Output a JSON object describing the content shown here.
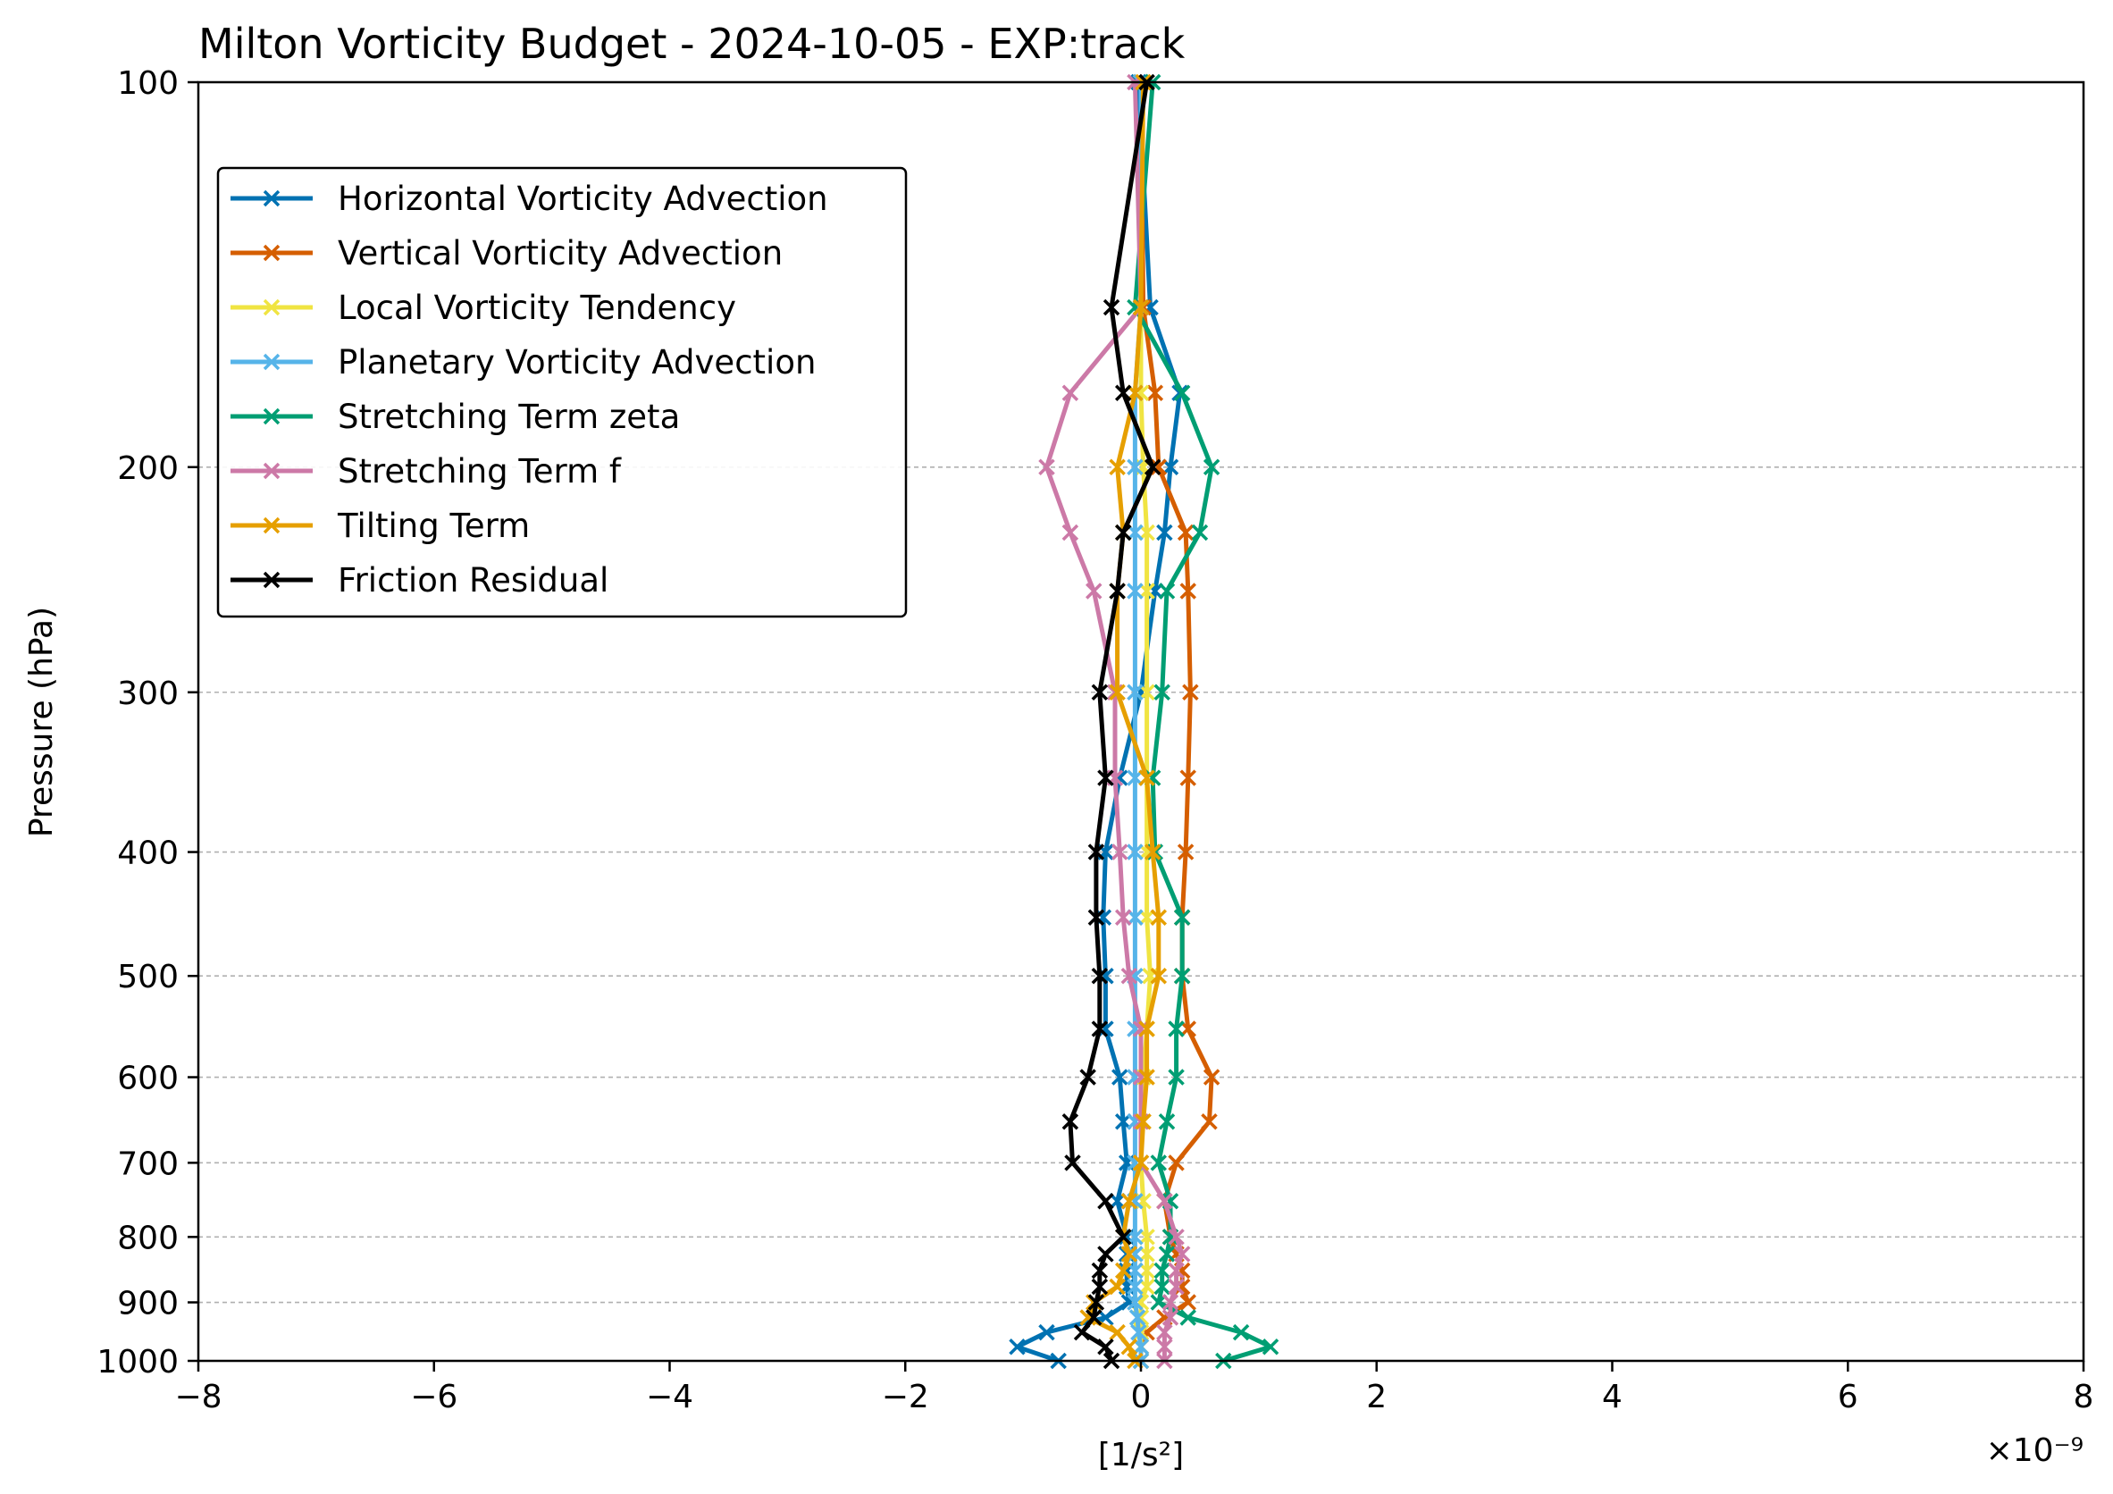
{
  "chart_data": {
    "type": "line",
    "title": "Milton Vorticity Budget - 2024-10-05 - EXP:track",
    "xlabel": "[1/s²]",
    "ylabel": "Pressure (hPa)",
    "x_offset_label": "×10⁻⁹",
    "x_scale_factor": 1e-09,
    "xlim": [
      -8e-09,
      8e-09
    ],
    "ylim": [
      1000,
      100
    ],
    "yscale": "log",
    "grid": "horizontal dashed",
    "legend_position": "upper-left",
    "xticks": [
      -8e-09,
      -6e-09,
      -4e-09,
      -2e-09,
      0,
      2e-09,
      4e-09,
      6e-09,
      8e-09
    ],
    "xtick_labels": [
      "−8",
      "−6",
      "−4",
      "−2",
      "0",
      "2",
      "4",
      "6",
      "8"
    ],
    "yticks": [
      100,
      200,
      300,
      400,
      500,
      600,
      700,
      800,
      900,
      1000
    ],
    "ytick_labels": [
      "100",
      "200",
      "300",
      "400",
      "500",
      "600",
      "700",
      "800",
      "900",
      "1000"
    ],
    "pressure_levels": [
      100,
      150,
      175,
      200,
      225,
      250,
      300,
      350,
      400,
      450,
      500,
      550,
      600,
      650,
      700,
      750,
      800,
      825,
      850,
      875,
      900,
      925,
      950,
      975,
      1000
    ],
    "series": [
      {
        "name": "Horizontal Vorticity Advection",
        "color": "#0072B2",
        "values": [
          -2e-11,
          8e-11,
          3.3e-10,
          2.5e-10,
          2e-10,
          1.2e-10,
          0.0,
          -1.8e-10,
          -3e-10,
          -3.2e-10,
          -3e-10,
          -3e-10,
          -1.8e-10,
          -1.5e-10,
          -1.2e-10,
          -2e-10,
          -1.2e-10,
          -1.2e-10,
          -1.2e-10,
          -1.2e-10,
          -1e-10,
          -3e-10,
          -8e-10,
          -1.05e-09,
          -7e-10
        ]
      },
      {
        "name": "Vertical Vorticity Advection",
        "color": "#D55E00",
        "values": [
          0.0,
          2e-11,
          1.2e-10,
          1.5e-10,
          3.8e-10,
          4e-10,
          4.2e-10,
          4e-10,
          3.8e-10,
          3.5e-10,
          3.5e-10,
          4e-10,
          6e-10,
          5.8e-10,
          3e-10,
          2e-10,
          2.5e-10,
          3e-10,
          3.5e-10,
          3.5e-10,
          4e-10,
          2e-10,
          5e-11,
          0.0,
          0.0
        ]
      },
      {
        "name": "Local Vorticity Tendency",
        "color": "#F0E442",
        "values": [
          0.0,
          0.0,
          0.0,
          2e-11,
          5e-11,
          5e-11,
          5e-11,
          5e-11,
          5e-11,
          5e-11,
          8e-11,
          5e-11,
          2e-11,
          0.0,
          0.0,
          2e-11,
          5e-11,
          5e-11,
          5e-11,
          5e-11,
          0.0,
          0.0,
          0.0,
          0.0,
          0.0
        ]
      },
      {
        "name": "Planetary Vorticity Advection",
        "color": "#56B4E9",
        "values": [
          0.0,
          0.0,
          -5e-11,
          -5e-11,
          -5e-11,
          -5e-11,
          -5e-11,
          -5e-11,
          -5e-11,
          -5e-11,
          -5e-11,
          -5e-11,
          -5e-11,
          -5e-11,
          -5e-11,
          -5e-11,
          -5e-11,
          -5e-11,
          -5e-11,
          -5e-11,
          -5e-11,
          -3e-11,
          -2e-11,
          0.0,
          0.0
        ]
      },
      {
        "name": "Stretching Term zeta",
        "color": "#009E73",
        "values": [
          1e-10,
          -5e-11,
          3.5e-10,
          6e-10,
          5e-10,
          2.2e-10,
          1.8e-10,
          1e-10,
          1.2e-10,
          3.5e-10,
          3.5e-10,
          3e-10,
          3e-10,
          2.2e-10,
          1.5e-10,
          2.5e-10,
          2.5e-10,
          2.2e-10,
          1.8e-10,
          1.8e-10,
          1.5e-10,
          4e-10,
          8.5e-10,
          1.1e-09,
          7e-10
        ]
      },
      {
        "name": "Stretching Term f",
        "color": "#CC79A7",
        "values": [
          -5e-11,
          0.0,
          -6e-10,
          -8e-10,
          -6e-10,
          -4e-10,
          -2.2e-10,
          -2.2e-10,
          -1.8e-10,
          -1.5e-10,
          -1e-10,
          0.0,
          0.0,
          0.0,
          0.0,
          2e-10,
          3e-10,
          3.5e-10,
          3e-10,
          3e-10,
          2.5e-10,
          2.5e-10,
          2e-10,
          2e-10,
          2e-10
        ]
      },
      {
        "name": "Tilting Term",
        "color": "#E69F00",
        "values": [
          2e-11,
          0.0,
          -5e-11,
          -2e-10,
          -1.5e-10,
          -2e-10,
          -2e-10,
          5e-11,
          1e-10,
          1.5e-10,
          1.5e-10,
          5e-11,
          5e-11,
          2e-11,
          0.0,
          -1e-10,
          -1.5e-10,
          -1e-10,
          -1.5e-10,
          -2e-10,
          -4e-10,
          -4.5e-10,
          -2e-10,
          -1e-10,
          -5e-11
        ]
      },
      {
        "name": "Friction Residual",
        "color": "#000000",
        "values": [
          5e-11,
          -2.5e-10,
          -1.5e-10,
          1e-10,
          -1.5e-10,
          -2e-10,
          -3.5e-10,
          -3e-10,
          -3.8e-10,
          -3.8e-10,
          -3.5e-10,
          -3.5e-10,
          -4.5e-10,
          -6e-10,
          -5.8e-10,
          -3e-10,
          -1.5e-10,
          -3e-10,
          -3.5e-10,
          -3.5e-10,
          -3.8e-10,
          -4e-10,
          -5e-10,
          -3e-10,
          -2.5e-10
        ]
      }
    ]
  }
}
